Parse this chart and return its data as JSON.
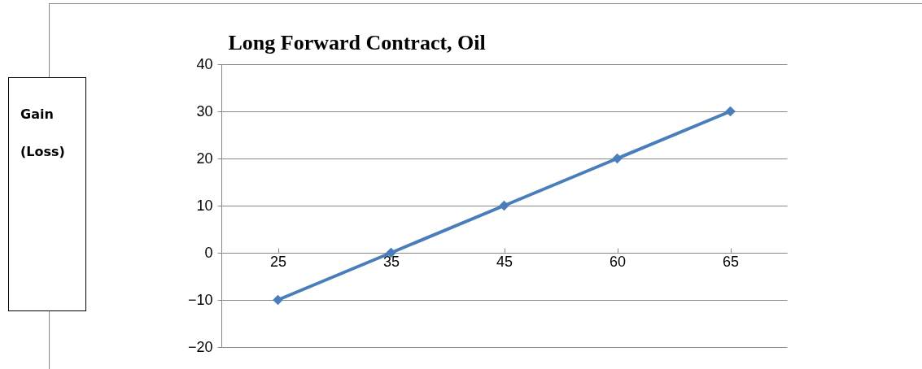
{
  "chart_data": {
    "type": "line",
    "title": "Long Forward Contract, Oil",
    "ylabel": "Gain (Loss)",
    "categories": [
      "25",
      "35",
      "45",
      "60",
      "65"
    ],
    "series": [
      {
        "color": "#4a7ebb",
        "values": [
          -10,
          0,
          10,
          20,
          30
        ]
      }
    ],
    "ylim": [
      -20,
      40
    ],
    "yticks": [
      -20,
      -10,
      0,
      10,
      20,
      30,
      40
    ],
    "grid": "y",
    "marker": "diamond",
    "legend": false
  }
}
